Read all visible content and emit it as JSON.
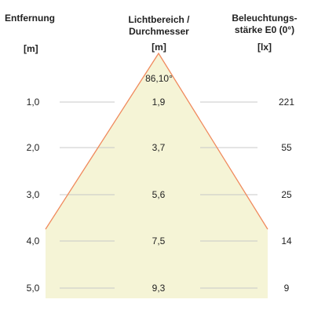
{
  "headers": {
    "distance": {
      "title": "Entfernung",
      "unit": "[m]"
    },
    "diameter": {
      "title_line1": "Lichtbereich /",
      "title_line2": "Durchmesser",
      "unit": "[m]"
    },
    "illuminance": {
      "title_line1": "Beleuchtungs-",
      "title_line2": "stärke E0 (0°)",
      "unit": "[lx]"
    }
  },
  "beam_angle": "86,10°",
  "colors": {
    "cone_fill": "#f5f4d6",
    "cone_edge": "#f08a5d",
    "row_line": "#c8c8c8"
  },
  "rows": [
    {
      "distance": "1,0",
      "diameter": "1,9",
      "illuminance": "221"
    },
    {
      "distance": "2,0",
      "diameter": "3,7",
      "illuminance": "55"
    },
    {
      "distance": "3,0",
      "diameter": "5,6",
      "illuminance": "25"
    },
    {
      "distance": "4,0",
      "diameter": "7,5",
      "illuminance": "14"
    },
    {
      "distance": "5,0",
      "diameter": "9,3",
      "illuminance": "9"
    }
  ]
}
